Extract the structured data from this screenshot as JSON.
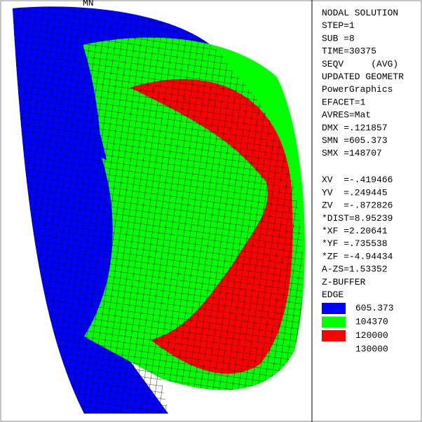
{
  "viewport": {
    "mn_label": "MN"
  },
  "panel": {
    "lines": [
      "NODAL SOLUTION",
      "STEP=1",
      "SUB =8",
      "TIME=30375",
      "SEQV     (AVG)",
      "UPDATED GEOMETR",
      "PowerGraphics",
      "EFACET=1",
      "AVRES=Mat",
      "DMX =.121857",
      "SMN =605.373",
      "SMX =148707",
      "XV  =-.419466",
      "YV  =.249445",
      "ZV  =-.872826",
      "*DIST=8.95239",
      "*XF =2.20641",
      "*YF =.735538",
      "*ZF =-4.94434",
      "A-ZS=1.53352",
      "Z-BUFFER",
      "EDGE"
    ],
    "legend": [
      {
        "color": "#0000ff",
        "label": "605.373"
      },
      {
        "color": "#00ff00",
        "label": "104370"
      },
      {
        "color": "#ff0000",
        "label": "120000"
      },
      {
        "color": "#ff0000",
        "label": "130000"
      }
    ]
  }
}
